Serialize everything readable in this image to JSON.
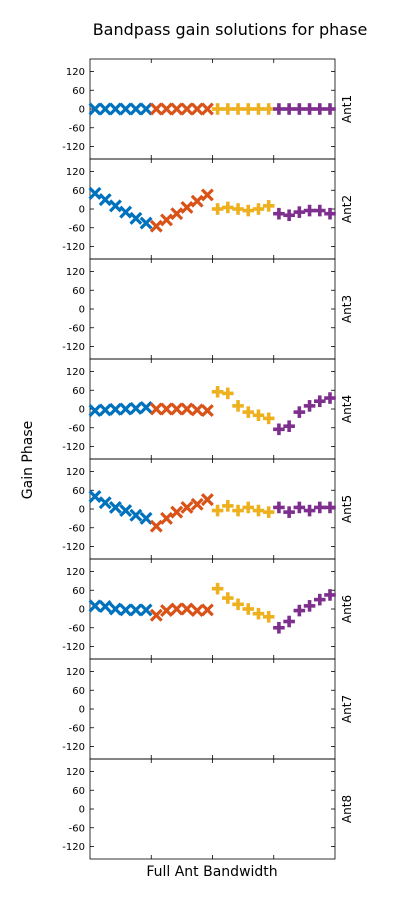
{
  "chart_data": {
    "type": "scatter",
    "title": "Bandpass gain solutions for phase",
    "xlabel": "Full Ant Bandwidth",
    "ylabel": "Gain Phase",
    "ylim": [
      -160,
      160
    ],
    "yticks": [
      120,
      60,
      0,
      -60,
      -120
    ],
    "grid": false,
    "points_per_spw": 6,
    "spws": [
      {
        "color": "#0072bd",
        "marker": "x"
      },
      {
        "color": "#d95319",
        "marker": "x"
      },
      {
        "color": "#edb120",
        "marker": "plus"
      },
      {
        "color": "#7e2f8e",
        "marker": "plus"
      }
    ],
    "panels": [
      {
        "name": "Ant1",
        "spw_values": [
          [
            0,
            0,
            0,
            0,
            0,
            0
          ],
          [
            0,
            0,
            0,
            0,
            0,
            0
          ],
          [
            0,
            0,
            0,
            0,
            0,
            0
          ],
          [
            0,
            0,
            0,
            0,
            0,
            0
          ]
        ]
      },
      {
        "name": "Ant2",
        "spw_values": [
          [
            50,
            30,
            10,
            -10,
            -30,
            -45
          ],
          [
            -55,
            -35,
            -15,
            5,
            25,
            45
          ],
          [
            0,
            5,
            0,
            -5,
            0,
            10
          ],
          [
            -15,
            -20,
            -10,
            -5,
            -5,
            -15
          ]
        ]
      },
      {
        "name": "Ant3",
        "spw_values": []
      },
      {
        "name": "Ant4",
        "spw_values": [
          [
            -5,
            -3,
            -1,
            0,
            2,
            5
          ],
          [
            0,
            0,
            0,
            0,
            -3,
            -5
          ],
          [
            55,
            50,
            10,
            -10,
            -20,
            -30
          ],
          [
            -65,
            -55,
            -10,
            10,
            25,
            35
          ]
        ]
      },
      {
        "name": "Ant5",
        "spw_values": [
          [
            40,
            20,
            5,
            -5,
            -20,
            -30
          ],
          [
            -55,
            -30,
            -10,
            5,
            15,
            30
          ],
          [
            -5,
            10,
            -5,
            5,
            -5,
            -10
          ],
          [
            5,
            -10,
            5,
            -5,
            5,
            5
          ]
        ]
      },
      {
        "name": "Ant6",
        "spw_values": [
          [
            10,
            8,
            0,
            -3,
            -3,
            -3
          ],
          [
            -20,
            -5,
            0,
            0,
            -5,
            -3
          ],
          [
            65,
            35,
            15,
            0,
            -15,
            -25
          ],
          [
            -60,
            -40,
            -5,
            10,
            30,
            45
          ]
        ]
      },
      {
        "name": "Ant7",
        "spw_values": []
      },
      {
        "name": "Ant8",
        "spw_values": []
      }
    ]
  }
}
